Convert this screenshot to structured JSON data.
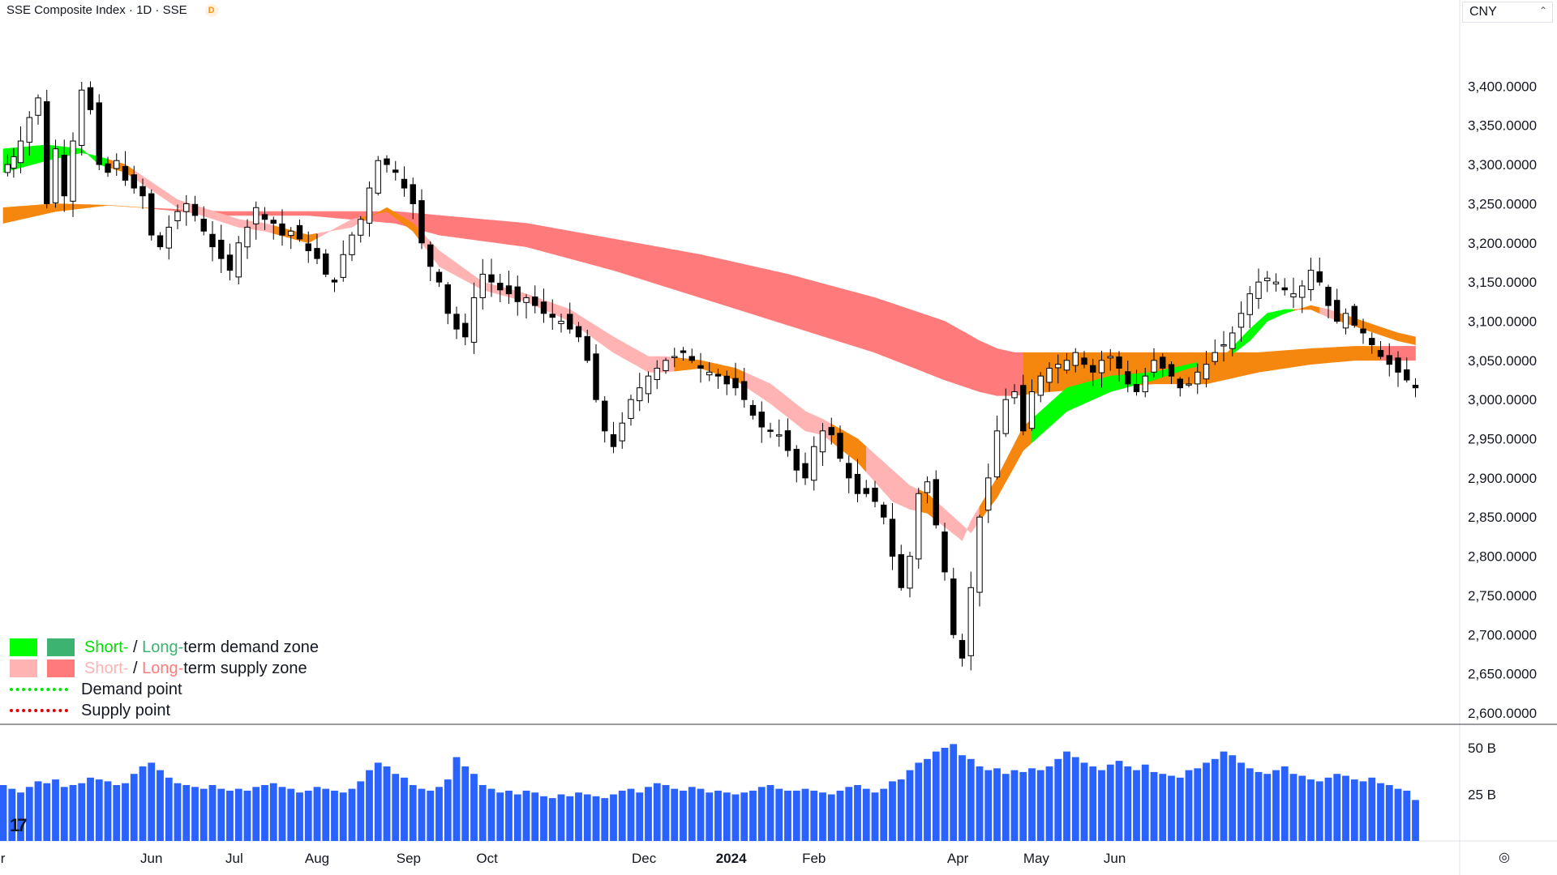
{
  "header": {
    "title": "SSE Composite Index · 1D · SSE",
    "badge": "D"
  },
  "currency": {
    "label": "CNY",
    "chevron": "⌃"
  },
  "legend": {
    "demand_short": "Short-",
    "demand_sep": " / ",
    "demand_long": "Long-",
    "demand_rest": "term demand zone",
    "supply_short": "Short-",
    "supply_sep": " / ",
    "supply_long": "Long-",
    "supply_rest": "term supply zone",
    "demand_point": "Demand point",
    "supply_point": "Supply point"
  },
  "colors": {
    "short_demand": "#00ff00",
    "long_demand": "#3cb371",
    "short_supply": "#ffb3b3",
    "long_supply": "#ff7b7b",
    "transition": "#f5870f",
    "volume": "#2962ff",
    "demand_point": "#00e600",
    "supply_point": "#e00000"
  },
  "logo": "17",
  "settings_icon": "◎",
  "chart_data": {
    "type": "candlestick",
    "title": "SSE Composite Index · 1D · SSE",
    "currency": "CNY",
    "y_ticks": [
      "3,400.0000",
      "3,350.0000",
      "3,300.0000",
      "3,250.0000",
      "3,200.0000",
      "3,150.0000",
      "3,100.0000",
      "3,050.0000",
      "3,000.0000",
      "2,950.0000",
      "2,900.0000",
      "2,850.0000",
      "2,800.0000",
      "2,750.0000",
      "2,700.0000",
      "2,650.0000",
      "2,600.0000"
    ],
    "ylim": [
      2600,
      3450
    ],
    "x_labels": [
      "Apr",
      "Jun",
      "Jul",
      "Aug",
      "Sep",
      "Oct",
      "Dec",
      "2024",
      "Feb",
      "Apr",
      "May",
      "Jun"
    ],
    "volume_ticks": [
      "50 B",
      "25 B"
    ],
    "volume_max_b": 60,
    "close_path": [
      [
        0,
        3290
      ],
      [
        0.5,
        3300
      ],
      [
        1.2,
        3310
      ],
      [
        2,
        3330
      ],
      [
        3,
        3360
      ],
      [
        4,
        3385
      ],
      [
        5,
        3250
      ],
      [
        6,
        3320
      ],
      [
        7,
        3260
      ],
      [
        8,
        3330
      ],
      [
        9,
        3395
      ],
      [
        10,
        3370
      ],
      [
        11,
        3300
      ],
      [
        12,
        3290
      ],
      [
        13,
        3305
      ],
      [
        14,
        3280
      ],
      [
        15,
        3270
      ],
      [
        16,
        3260
      ],
      [
        17,
        3210
      ],
      [
        18,
        3195
      ],
      [
        19,
        3220
      ],
      [
        20,
        3240
      ],
      [
        21,
        3250
      ],
      [
        22,
        3235
      ],
      [
        23,
        3215
      ],
      [
        24,
        3195
      ],
      [
        25,
        3180
      ],
      [
        26,
        3165
      ],
      [
        27,
        3200
      ],
      [
        28,
        3220
      ],
      [
        29,
        3245
      ],
      [
        30,
        3230
      ],
      [
        31,
        3225
      ],
      [
        32,
        3210
      ],
      [
        33,
        3215
      ],
      [
        34,
        3205
      ],
      [
        35,
        3190
      ],
      [
        36,
        3180
      ],
      [
        37,
        3160
      ],
      [
        38,
        3150
      ],
      [
        39,
        3185
      ],
      [
        40,
        3210
      ],
      [
        41,
        3230
      ],
      [
        42,
        3270
      ],
      [
        43,
        3305
      ],
      [
        44,
        3300
      ],
      [
        45,
        3290
      ],
      [
        46,
        3270
      ],
      [
        47,
        3250
      ],
      [
        48,
        3200
      ],
      [
        49,
        3170
      ],
      [
        50,
        3150
      ],
      [
        51,
        3110
      ],
      [
        52,
        3090
      ],
      [
        53,
        3080
      ],
      [
        54,
        3130
      ],
      [
        55,
        3160
      ],
      [
        56,
        3150
      ],
      [
        57,
        3140
      ],
      [
        58,
        3135
      ],
      [
        59,
        3125
      ],
      [
        60,
        3130
      ],
      [
        61,
        3120
      ],
      [
        62,
        3110
      ],
      [
        63,
        3105
      ],
      [
        64,
        3100
      ],
      [
        65,
        3090
      ],
      [
        66,
        3080
      ],
      [
        67,
        3050
      ],
      [
        68,
        3000
      ],
      [
        69,
        2960
      ],
      [
        70,
        2940
      ],
      [
        71,
        2970
      ],
      [
        72,
        3000
      ],
      [
        73,
        3015
      ],
      [
        74,
        3030
      ],
      [
        75,
        3040
      ],
      [
        76,
        3050
      ],
      [
        77,
        3055
      ],
      [
        78,
        3060
      ],
      [
        79,
        3050
      ],
      [
        80,
        3040
      ],
      [
        81,
        3035
      ],
      [
        82,
        3030
      ],
      [
        83,
        3020
      ],
      [
        84,
        3015
      ],
      [
        85,
        3000
      ],
      [
        86,
        2980
      ],
      [
        87,
        2965
      ],
      [
        88,
        2960
      ],
      [
        89,
        2955
      ],
      [
        90,
        2935
      ],
      [
        91,
        2910
      ],
      [
        92,
        2900
      ],
      [
        93,
        2940
      ],
      [
        94,
        2960
      ],
      [
        95,
        2955
      ],
      [
        96,
        2925
      ],
      [
        97,
        2900
      ],
      [
        98,
        2880
      ],
      [
        99,
        2880
      ],
      [
        100,
        2870
      ],
      [
        101,
        2850
      ],
      [
        102,
        2800
      ],
      [
        103,
        2760
      ],
      [
        104,
        2800
      ],
      [
        105,
        2880
      ],
      [
        106,
        2895
      ],
      [
        107,
        2840
      ],
      [
        108,
        2780
      ],
      [
        109,
        2700
      ],
      [
        110,
        2670
      ],
      [
        111,
        2760
      ],
      [
        112,
        2850
      ],
      [
        113,
        2900
      ],
      [
        114,
        2960
      ],
      [
        115,
        3000
      ],
      [
        116,
        3010
      ],
      [
        117,
        2960
      ],
      [
        118,
        3010
      ],
      [
        119,
        3030
      ],
      [
        120,
        3040
      ],
      [
        121,
        3045
      ],
      [
        122,
        3050
      ],
      [
        123,
        3060
      ],
      [
        124,
        3045
      ],
      [
        125,
        3035
      ],
      [
        126,
        3050
      ],
      [
        127,
        3055
      ],
      [
        128,
        3040
      ],
      [
        129,
        3020
      ],
      [
        130,
        3010
      ],
      [
        131,
        3030
      ],
      [
        132,
        3050
      ],
      [
        133,
        3040
      ],
      [
        134,
        3030
      ],
      [
        135,
        3015
      ],
      [
        136,
        3020
      ],
      [
        137,
        3035
      ],
      [
        138,
        3045
      ],
      [
        139,
        3060
      ],
      [
        140,
        3070
      ],
      [
        141,
        3085
      ],
      [
        142,
        3110
      ],
      [
        143,
        3135
      ],
      [
        144,
        3150
      ],
      [
        145,
        3155
      ],
      [
        146,
        3150
      ],
      [
        147,
        3140
      ],
      [
        148,
        3135
      ],
      [
        149,
        3145
      ],
      [
        150,
        3165
      ],
      [
        151,
        3150
      ],
      [
        152,
        3120
      ],
      [
        153,
        3100
      ],
      [
        154,
        3110
      ],
      [
        155,
        3095
      ],
      [
        156,
        3085
      ],
      [
        157,
        3070
      ],
      [
        158,
        3055
      ],
      [
        159,
        3045
      ],
      [
        160,
        3035
      ],
      [
        161,
        3025
      ],
      [
        162,
        3015
      ]
    ],
    "short_band_path": [
      [
        0,
        3290,
        3320,
        "demand"
      ],
      [
        5,
        3305,
        3325,
        "demand"
      ],
      [
        9,
        3315,
        3320,
        "demand"
      ],
      [
        11,
        3310,
        3300,
        "transition"
      ],
      [
        14,
        3300,
        3290,
        "supply"
      ],
      [
        20,
        3255,
        3245,
        "supply"
      ],
      [
        27,
        3230,
        3220,
        "supply"
      ],
      [
        30,
        3225,
        3215,
        "transition"
      ],
      [
        35,
        3210,
        3200,
        "supply"
      ],
      [
        40,
        3220,
        3230,
        "transition"
      ],
      [
        44,
        3245,
        3240,
        "transition"
      ],
      [
        47,
        3225,
        3215,
        "supply"
      ],
      [
        50,
        3190,
        3170,
        "supply"
      ],
      [
        55,
        3150,
        3140,
        "supply"
      ],
      [
        60,
        3135,
        3125,
        "supply"
      ],
      [
        65,
        3115,
        3100,
        "supply"
      ],
      [
        70,
        3080,
        3060,
        "supply"
      ],
      [
        74,
        3055,
        3035,
        "supply"
      ],
      [
        76,
        3055,
        3035,
        "transition"
      ],
      [
        80,
        3050,
        3040,
        "transition"
      ],
      [
        84,
        3040,
        3025,
        "supply"
      ],
      [
        88,
        3020,
        2995,
        "supply"
      ],
      [
        92,
        2985,
        2960,
        "supply"
      ],
      [
        94,
        2975,
        2955,
        "transition"
      ],
      [
        98,
        2950,
        2920,
        "supply"
      ],
      [
        102,
        2910,
        2870,
        "supply"
      ],
      [
        104,
        2890,
        2860,
        "transition"
      ],
      [
        106,
        2880,
        2855,
        "supply"
      ],
      [
        110,
        2840,
        2820,
        "supply"
      ],
      [
        111,
        2830,
        2845,
        "transition"
      ],
      [
        114,
        2875,
        2900,
        "transition"
      ],
      [
        117,
        2935,
        2965,
        "demand"
      ],
      [
        122,
        2985,
        3015,
        "demand"
      ],
      [
        127,
        3010,
        3030,
        "demand"
      ],
      [
        132,
        3025,
        3035,
        "demand"
      ],
      [
        136,
        3040,
        3045,
        "transition"
      ],
      [
        140,
        3050,
        3055,
        "demand"
      ],
      [
        143,
        3075,
        3090,
        "demand"
      ],
      [
        145,
        3100,
        3110,
        "demand"
      ],
      [
        147,
        3110,
        3115,
        "transition"
      ],
      [
        150,
        3120,
        3115,
        "supply"
      ],
      [
        152,
        3115,
        3105,
        "transition"
      ],
      [
        156,
        3100,
        3090,
        "transition"
      ],
      [
        160,
        3085,
        3075,
        "transition"
      ],
      [
        162,
        3080,
        3070,
        "transition"
      ]
    ],
    "long_band_path": [
      [
        0,
        3225,
        3245,
        "transition"
      ],
      [
        6,
        3240,
        3250,
        "transition"
      ],
      [
        12,
        3248,
        3248,
        "transition"
      ],
      [
        16,
        3245,
        3245,
        "supply"
      ],
      [
        25,
        3240,
        3235,
        "supply"
      ],
      [
        35,
        3240,
        3235,
        "supply"
      ],
      [
        45,
        3240,
        3225,
        "supply"
      ],
      [
        50,
        3235,
        3210,
        "supply"
      ],
      [
        60,
        3225,
        3195,
        "supply"
      ],
      [
        70,
        3205,
        3165,
        "supply"
      ],
      [
        80,
        3185,
        3130,
        "supply"
      ],
      [
        90,
        3160,
        3095,
        "supply"
      ],
      [
        100,
        3130,
        3060,
        "supply"
      ],
      [
        108,
        3100,
        3025,
        "supply"
      ],
      [
        112,
        3075,
        3010,
        "supply"
      ],
      [
        114,
        3065,
        3005,
        "supply"
      ],
      [
        116,
        3060,
        3005,
        "transition"
      ],
      [
        120,
        3060,
        3010,
        "transition"
      ],
      [
        126,
        3060,
        3015,
        "transition"
      ],
      [
        132,
        3060,
        3020,
        "transition"
      ],
      [
        138,
        3060,
        3020,
        "transition"
      ],
      [
        144,
        3060,
        3035,
        "transition"
      ],
      [
        150,
        3065,
        3045,
        "transition"
      ],
      [
        155,
        3068,
        3050,
        "transition"
      ],
      [
        157,
        3068,
        3050,
        "supply"
      ],
      [
        162,
        3068,
        3050,
        "supply"
      ]
    ],
    "volume_b": [
      30,
      28,
      26,
      29,
      32,
      31,
      33,
      29,
      30,
      31,
      34,
      33,
      32,
      30,
      31,
      36,
      40,
      42,
      38,
      34,
      31,
      30,
      29,
      28,
      30,
      28,
      27,
      28,
      27,
      29,
      30,
      31,
      29,
      28,
      26,
      27,
      29,
      28,
      27,
      26,
      28,
      32,
      38,
      42,
      40,
      36,
      34,
      30,
      28,
      27,
      29,
      33,
      45,
      40,
      36,
      30,
      28,
      26,
      27,
      25,
      27,
      26,
      24,
      23,
      25,
      24,
      26,
      25,
      24,
      23,
      25,
      27,
      28,
      26,
      29,
      31,
      30,
      28,
      27,
      29,
      28,
      26,
      27,
      26,
      25,
      26,
      27,
      29,
      30,
      28,
      27,
      27,
      28,
      27,
      26,
      25,
      27,
      29,
      30,
      28,
      26,
      28,
      32,
      33,
      38,
      42,
      44,
      48,
      50,
      52,
      46,
      44,
      40,
      38,
      39,
      36,
      38,
      37,
      39,
      38,
      40,
      44,
      48,
      45,
      42,
      40,
      38,
      41,
      43,
      40,
      38,
      41,
      37,
      36,
      35,
      34,
      38,
      39,
      42,
      44,
      48,
      46,
      42,
      39,
      37,
      36,
      38,
      40,
      36,
      35,
      33,
      32,
      34,
      36,
      35,
      33,
      32,
      34,
      31,
      30,
      28,
      27,
      22
    ],
    "candles": "synthetic reproduction of daily OHLC following close_path"
  }
}
